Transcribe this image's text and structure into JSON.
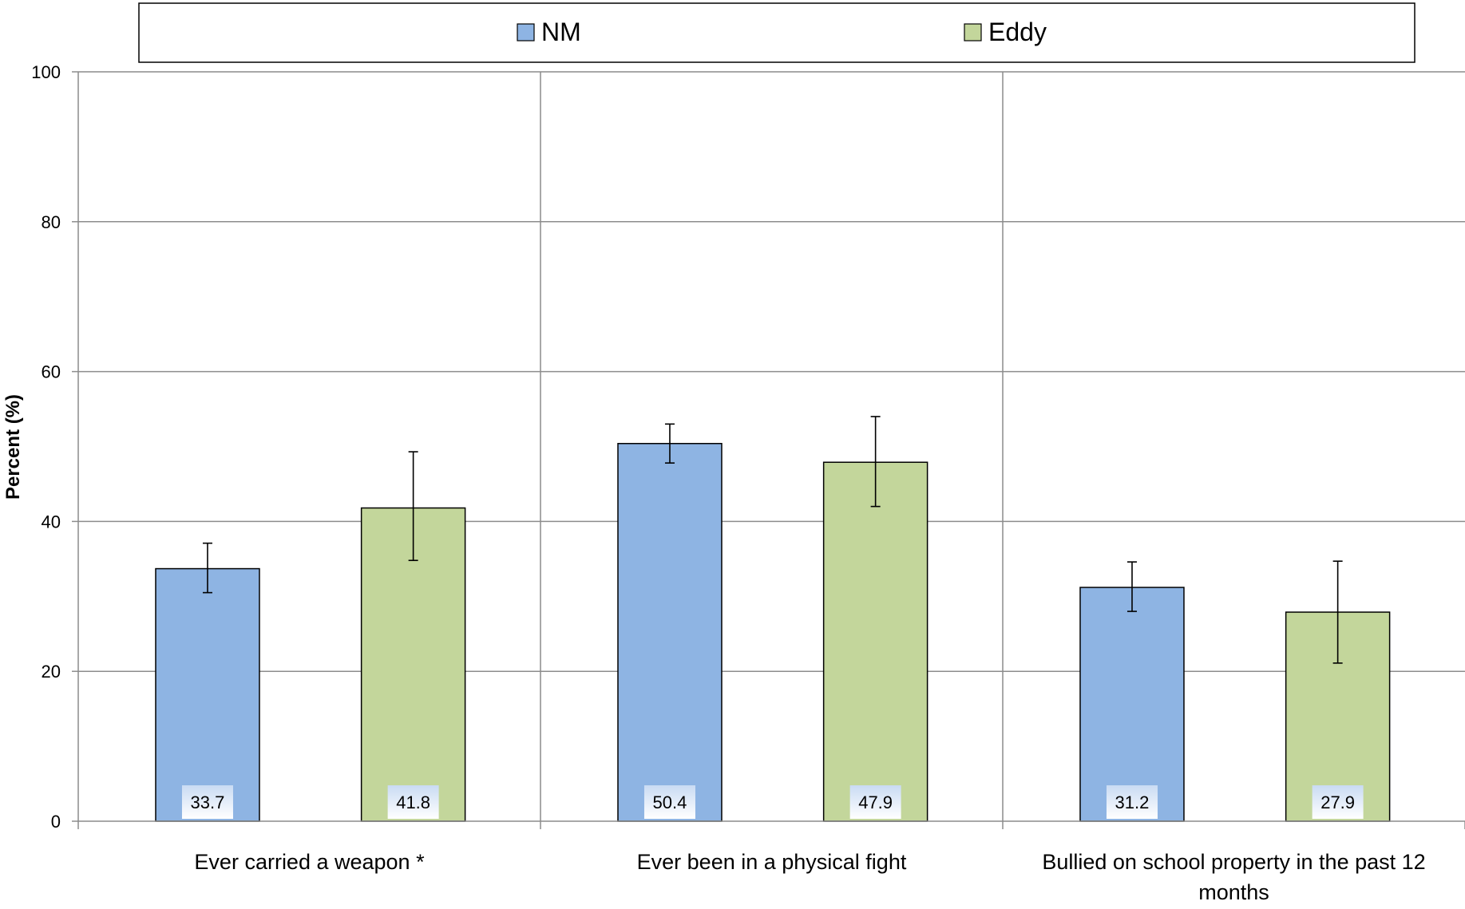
{
  "chart_data": {
    "type": "bar",
    "categories": [
      [
        "Ever carried a weapon *"
      ],
      [
        "Ever been in a physical fight"
      ],
      [
        "Bullied on school property in the past 12",
        "months"
      ]
    ],
    "series": [
      {
        "name": "NM",
        "color": "#8EB4E3",
        "values": [
          33.7,
          50.4,
          31.2
        ],
        "error_low": [
          30.5,
          47.8,
          28.0
        ],
        "error_high": [
          37.1,
          53.0,
          34.6
        ]
      },
      {
        "name": "Eddy",
        "color": "#C3D69B",
        "values": [
          41.8,
          47.9,
          27.9
        ],
        "error_low": [
          34.8,
          42.0,
          21.1
        ],
        "error_high": [
          49.3,
          54.0,
          34.7
        ]
      }
    ],
    "data_labels": [
      [
        "33.7",
        "50.4",
        "31.2"
      ],
      [
        "41.8",
        "47.9",
        "27.9"
      ]
    ],
    "ylabel": "Percent (%)",
    "ylim": [
      0,
      100
    ],
    "yticks": [
      "0",
      "20",
      "40",
      "60",
      "80",
      "100"
    ],
    "grid": true,
    "legend_position": "top"
  }
}
